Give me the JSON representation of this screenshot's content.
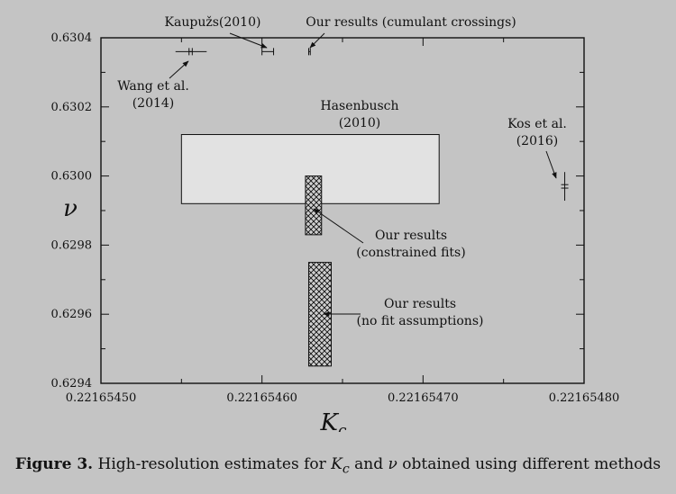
{
  "chart_data": {
    "type": "scatter",
    "xlabel": "K_c",
    "ylabel": "ν",
    "xlim": [
      0.2216545,
      0.2216548
    ],
    "ylim": [
      0.6294,
      0.6304
    ],
    "x_ticks": [
      "0.22165450",
      "0.22165460",
      "0.22165470",
      "0.22165480"
    ],
    "y_ticks": [
      "0.6294",
      "0.6296",
      "0.6298",
      "0.6300",
      "0.6302",
      "0.6304"
    ],
    "regions": [
      {
        "label": "Hasenbusch (2010)",
        "x": [
          0.22165455,
          0.22165471
        ],
        "y": [
          0.62992,
          0.63012
        ],
        "style": "light-fill"
      },
      {
        "label": "Our results (constrained fits)",
        "x": [
          0.221654627,
          0.221654637
        ],
        "y": [
          0.62983,
          0.63
        ],
        "style": "crosshatch"
      },
      {
        "label": "Our results (no fit assumptions)",
        "x": [
          0.221654629,
          0.221654643
        ],
        "y": [
          0.62945,
          0.62975
        ],
        "style": "crosshatch"
      }
    ],
    "error_bars": [
      {
        "label": "Wang et al. (2014)",
        "x": 0.2216545557,
        "x_err": 1e-09,
        "y": 0.63036
      },
      {
        "label": "Kaupužs(2010)",
        "x": 0.2216546036,
        "x_err": 3.6e-09,
        "y": 0.63036
      },
      {
        "label": "Our results (cumulant crossings)",
        "x": 0.2216546295,
        "x_err": 5e-10,
        "y": 0.63036
      },
      {
        "label": "Kos et al. (2016)",
        "x": 0.221654788,
        "y": 0.62997,
        "y_err": 5e-06
      }
    ]
  },
  "annotations": {
    "kaupuzs": "Kaupužs(2010)",
    "cumulant": "Our results (cumulant crossings)",
    "wang_1": "Wang et al.",
    "wang_2": "(2014)",
    "hasen_1": "Hasenbusch",
    "hasen_2": "(2010)",
    "kos_1": "Kos et al.",
    "kos_2": "(2016)",
    "constrained_1": "Our results",
    "constrained_2": "(constrained fits)",
    "nofit_1": "Our results",
    "nofit_2": "(no fit assumptions)"
  },
  "caption": {
    "label": "Figure 3.",
    "text_1": " High-resolution estimates for ",
    "sym_k": "K",
    "sym_sub": "c",
    "text_2": " and ",
    "sym_nu": "ν",
    "text_3": " obtained using different methods"
  }
}
